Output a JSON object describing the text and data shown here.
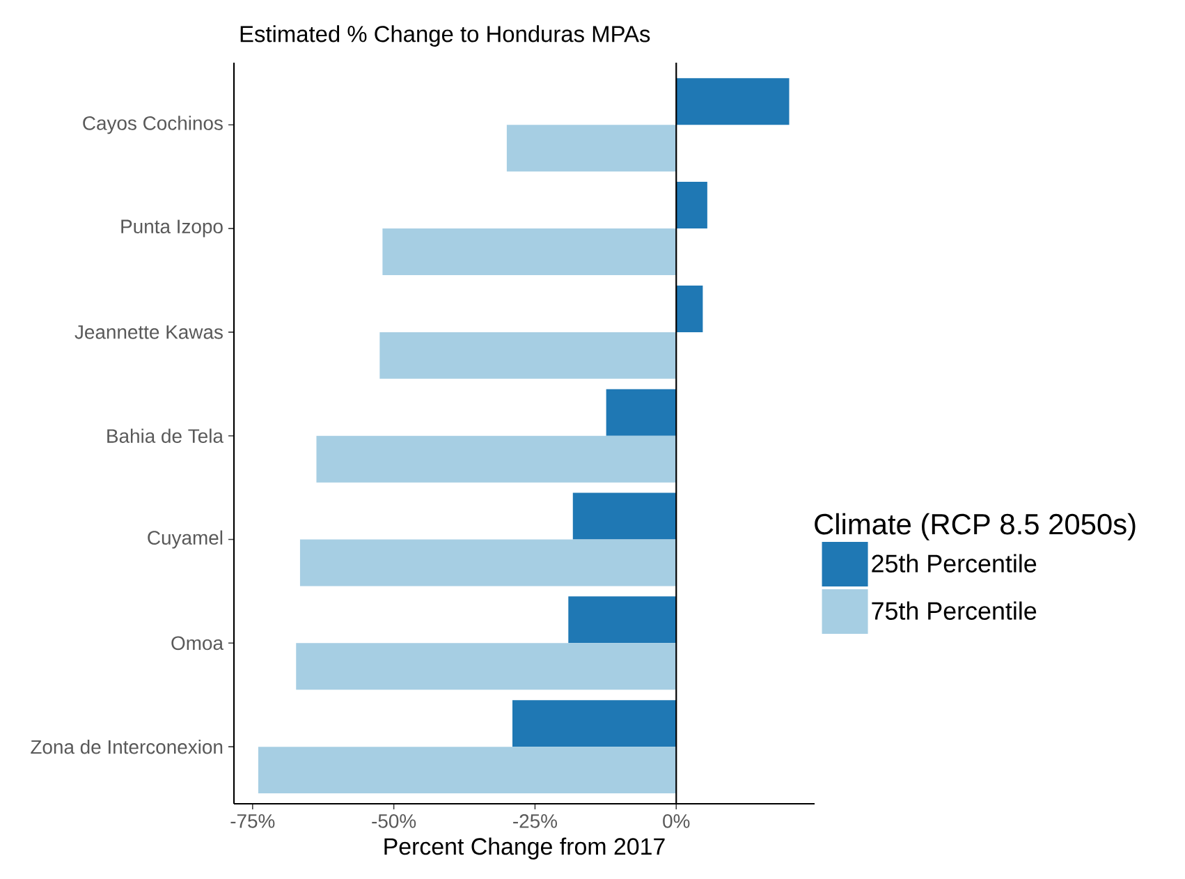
{
  "chart_data": {
    "type": "bar",
    "orientation": "horizontal",
    "title": "Estimated % Change to Honduras MPAs",
    "xlabel": "Percent Change from 2017",
    "legend_title": "Climate (RCP 8.5 2050s)",
    "categories": [
      "Cayos Cochinos",
      "Punta Izopo",
      "Jeannette Kawas",
      "Bahia de Tela",
      "Cuyamel",
      "Omoa",
      "Zona de Interconexion"
    ],
    "series": [
      {
        "name": "25th Percentile",
        "color": "#1f78b4",
        "values": [
          20.0,
          5.5,
          4.7,
          -12.4,
          -18.3,
          -19.1,
          -29.0
        ]
      },
      {
        "name": "75th Percentile",
        "color": "#a6cee3",
        "values": [
          -30.0,
          -52.0,
          -52.5,
          -63.7,
          -66.6,
          -67.3,
          -74.0
        ]
      }
    ],
    "xlim": [
      -78.3,
      24.5
    ],
    "xticks": [
      {
        "value": -75,
        "label": "-75%"
      },
      {
        "value": -50,
        "label": "-50%"
      },
      {
        "value": -25,
        "label": "-25%"
      },
      {
        "value": 0,
        "label": "0%"
      }
    ],
    "ref_lines": [
      {
        "axis": "x",
        "value": 0,
        "color": "#000000"
      }
    ],
    "grid": false,
    "legend": "right"
  }
}
